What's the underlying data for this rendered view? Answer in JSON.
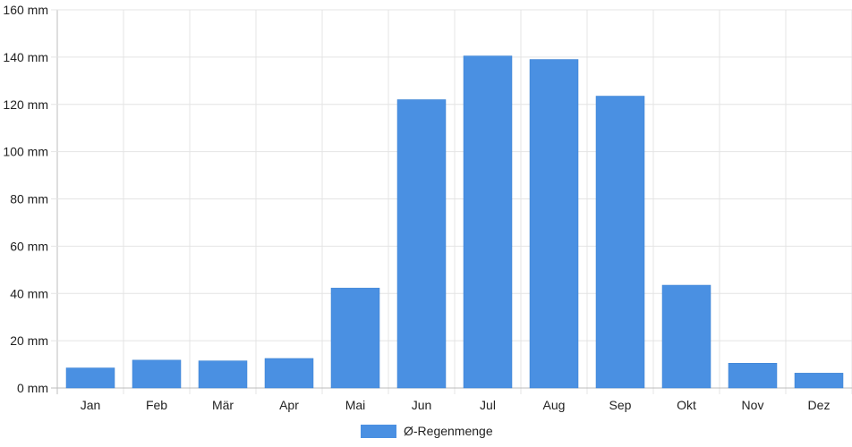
{
  "chart_data": {
    "type": "bar",
    "categories": [
      "Jan",
      "Feb",
      "Mär",
      "Apr",
      "Mai",
      "Jun",
      "Jul",
      "Aug",
      "Sep",
      "Okt",
      "Nov",
      "Dez"
    ],
    "series": [
      {
        "name": "Ø-Regenmenge",
        "values": [
          8.5,
          11.8,
          11.5,
          12.5,
          42.3,
          122,
          140.5,
          139,
          123.5,
          43.5,
          10.5,
          6.3
        ],
        "color": "#4a90e2"
      }
    ],
    "ylim": [
      0,
      160
    ],
    "yticks": [
      0,
      20,
      40,
      60,
      80,
      100,
      120,
      140,
      160
    ],
    "y_tick_suffix": " mm",
    "grid": true,
    "legend": "bottom-center"
  }
}
